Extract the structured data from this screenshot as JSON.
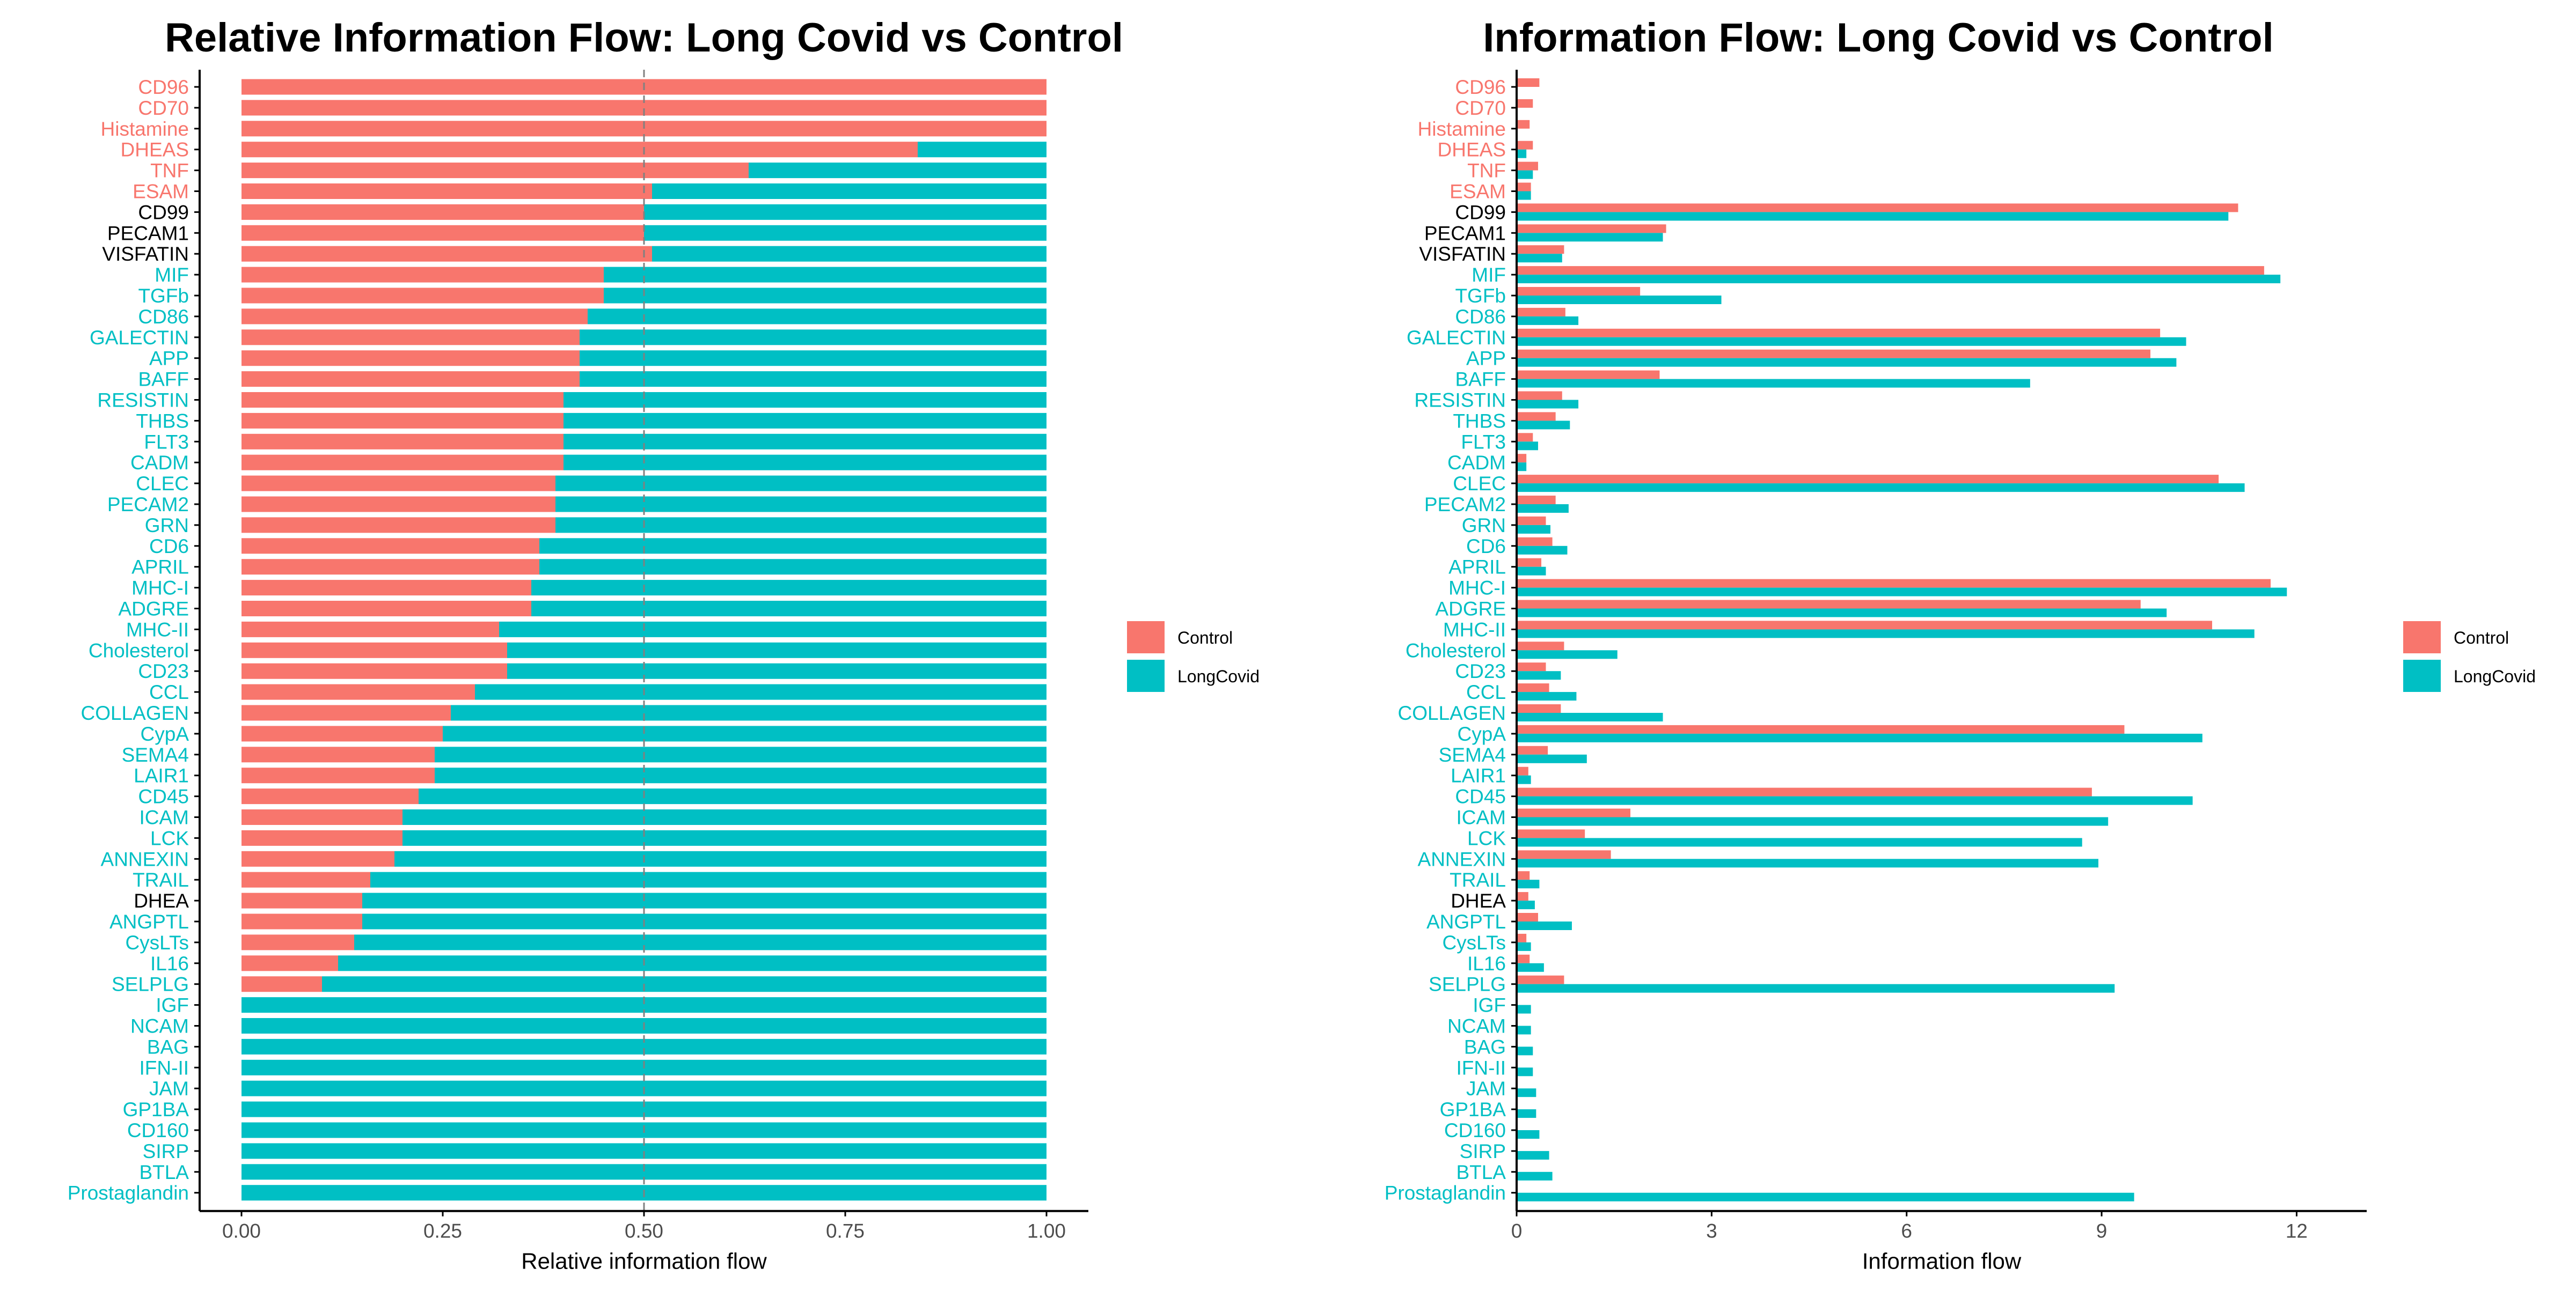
{
  "colors": {
    "Control": "#F8766D",
    "LongCovid": "#00BFC4",
    "neutral_label": "#000000",
    "axis": "#000000",
    "tick_text": "#4D4D4D",
    "reference_line": "#808080"
  },
  "legend": {
    "entries": [
      "Control",
      "LongCovid"
    ]
  },
  "chart_data": [
    {
      "type": "bar",
      "orientation": "horizontal",
      "stacked": true,
      "title": "Relative Information Flow: Long Covid vs Control",
      "xlabel": "Relative information flow",
      "xlim": [
        0,
        1
      ],
      "xticks": [
        0,
        0.25,
        0.5,
        0.75,
        1
      ],
      "xtick_labels": [
        "0.00",
        "0.25",
        "0.50",
        "0.75",
        "1.00"
      ],
      "reference_line_x": 0.5,
      "grid": false,
      "legend_position": "right",
      "categories": [
        "CD96",
        "CD70",
        "Histamine",
        "DHEAS",
        "TNF",
        "ESAM",
        "CD99",
        "PECAM1",
        "VISFATIN",
        "MIF",
        "TGFb",
        "CD86",
        "GALECTIN",
        "APP",
        "BAFF",
        "RESISTIN",
        "THBS",
        "FLT3",
        "CADM",
        "CLEC",
        "PECAM2",
        "GRN",
        "CD6",
        "APRIL",
        "MHC-I",
        "ADGRE",
        "MHC-II",
        "Cholesterol",
        "CD23",
        "CCL",
        "COLLAGEN",
        "CypA",
        "SEMA4",
        "LAIR1",
        "CD45",
        "ICAM",
        "LCK",
        "ANNEXIN",
        "TRAIL",
        "DHEA",
        "ANGPTL",
        "CysLTs",
        "IL16",
        "SELPLG",
        "IGF",
        "NCAM",
        "BAG",
        "IFN-II",
        "JAM",
        "GP1BA",
        "CD160",
        "SIRP",
        "BTLA",
        "Prostaglandin"
      ],
      "label_groups": [
        "Control",
        "Control",
        "Control",
        "Control",
        "Control",
        "Control",
        "neutral",
        "neutral",
        "neutral",
        "LongCovid",
        "LongCovid",
        "LongCovid",
        "LongCovid",
        "LongCovid",
        "LongCovid",
        "LongCovid",
        "LongCovid",
        "LongCovid",
        "LongCovid",
        "LongCovid",
        "LongCovid",
        "LongCovid",
        "LongCovid",
        "LongCovid",
        "LongCovid",
        "LongCovid",
        "LongCovid",
        "LongCovid",
        "LongCovid",
        "LongCovid",
        "LongCovid",
        "LongCovid",
        "LongCovid",
        "LongCovid",
        "LongCovid",
        "LongCovid",
        "LongCovid",
        "LongCovid",
        "LongCovid",
        "neutral",
        "LongCovid",
        "LongCovid",
        "LongCovid",
        "LongCovid",
        "LongCovid",
        "LongCovid",
        "LongCovid",
        "LongCovid",
        "LongCovid",
        "LongCovid",
        "LongCovid",
        "LongCovid",
        "LongCovid",
        "LongCovid"
      ],
      "series": [
        {
          "name": "Control",
          "values": [
            1.0,
            1.0,
            1.0,
            0.84,
            0.63,
            0.51,
            0.5,
            0.5,
            0.51,
            0.45,
            0.45,
            0.43,
            0.42,
            0.42,
            0.42,
            0.4,
            0.4,
            0.4,
            0.4,
            0.39,
            0.39,
            0.39,
            0.37,
            0.37,
            0.36,
            0.36,
            0.32,
            0.33,
            0.33,
            0.29,
            0.26,
            0.25,
            0.24,
            0.24,
            0.22,
            0.2,
            0.2,
            0.19,
            0.16,
            0.15,
            0.15,
            0.14,
            0.12,
            0.1,
            0,
            0,
            0,
            0,
            0,
            0,
            0,
            0,
            0,
            0
          ]
        },
        {
          "name": "LongCovid",
          "values": [
            0,
            0,
            0,
            0.16,
            0.37,
            0.49,
            0.5,
            0.5,
            0.49,
            0.55,
            0.55,
            0.57,
            0.58,
            0.58,
            0.58,
            0.6,
            0.6,
            0.6,
            0.6,
            0.61,
            0.61,
            0.61,
            0.63,
            0.63,
            0.64,
            0.64,
            0.68,
            0.67,
            0.67,
            0.71,
            0.74,
            0.75,
            0.76,
            0.76,
            0.78,
            0.8,
            0.8,
            0.81,
            0.84,
            0.85,
            0.85,
            0.86,
            0.88,
            0.9,
            1.0,
            1.0,
            1.0,
            1.0,
            1.0,
            1.0,
            1.0,
            1.0,
            1.0,
            1.0
          ]
        }
      ]
    },
    {
      "type": "bar",
      "orientation": "horizontal",
      "stacked": false,
      "title": "Information Flow: Long Covid vs Control",
      "xlabel": "Information flow",
      "xlim": [
        0,
        12.5
      ],
      "xticks": [
        0,
        3,
        6,
        9,
        12
      ],
      "xtick_labels": [
        "0",
        "3",
        "6",
        "9",
        "12"
      ],
      "grid": false,
      "legend_position": "right",
      "categories": [
        "CD96",
        "CD70",
        "Histamine",
        "DHEAS",
        "TNF",
        "ESAM",
        "CD99",
        "PECAM1",
        "VISFATIN",
        "MIF",
        "TGFb",
        "CD86",
        "GALECTIN",
        "APP",
        "BAFF",
        "RESISTIN",
        "THBS",
        "FLT3",
        "CADM",
        "CLEC",
        "PECAM2",
        "GRN",
        "CD6",
        "APRIL",
        "MHC-I",
        "ADGRE",
        "MHC-II",
        "Cholesterol",
        "CD23",
        "CCL",
        "COLLAGEN",
        "CypA",
        "SEMA4",
        "LAIR1",
        "CD45",
        "ICAM",
        "LCK",
        "ANNEXIN",
        "TRAIL",
        "DHEA",
        "ANGPTL",
        "CysLTs",
        "IL16",
        "SELPLG",
        "IGF",
        "NCAM",
        "BAG",
        "IFN-II",
        "JAM",
        "GP1BA",
        "CD160",
        "SIRP",
        "BTLA",
        "Prostaglandin"
      ],
      "label_groups": [
        "Control",
        "Control",
        "Control",
        "Control",
        "Control",
        "Control",
        "neutral",
        "neutral",
        "neutral",
        "LongCovid",
        "LongCovid",
        "LongCovid",
        "LongCovid",
        "LongCovid",
        "LongCovid",
        "LongCovid",
        "LongCovid",
        "LongCovid",
        "LongCovid",
        "LongCovid",
        "LongCovid",
        "LongCovid",
        "LongCovid",
        "LongCovid",
        "LongCovid",
        "LongCovid",
        "LongCovid",
        "LongCovid",
        "LongCovid",
        "LongCovid",
        "LongCovid",
        "LongCovid",
        "LongCovid",
        "LongCovid",
        "LongCovid",
        "LongCovid",
        "LongCovid",
        "LongCovid",
        "LongCovid",
        "neutral",
        "LongCovid",
        "LongCovid",
        "LongCovid",
        "LongCovid",
        "LongCovid",
        "LongCovid",
        "LongCovid",
        "LongCovid",
        "LongCovid",
        "LongCovid",
        "LongCovid",
        "LongCovid",
        "LongCovid",
        "LongCovid"
      ],
      "series": [
        {
          "name": "Control",
          "values": [
            0.35,
            0.25,
            0.2,
            0.25,
            0.33,
            0.22,
            11.1,
            2.3,
            0.73,
            11.5,
            1.9,
            0.75,
            9.9,
            9.75,
            2.2,
            0.7,
            0.6,
            0.25,
            0.15,
            10.8,
            0.6,
            0.45,
            0.55,
            0.38,
            11.6,
            9.6,
            10.7,
            0.73,
            0.45,
            0.5,
            0.68,
            9.35,
            0.48,
            0.18,
            8.85,
            1.75,
            1.05,
            1.45,
            0.2,
            0.18,
            0.33,
            0.15,
            0.2,
            0.73,
            0,
            0,
            0,
            0,
            0,
            0,
            0,
            0,
            0,
            0
          ]
        },
        {
          "name": "LongCovid",
          "values": [
            0,
            0,
            0,
            0.15,
            0.25,
            0.22,
            10.95,
            2.25,
            0.7,
            11.75,
            3.15,
            0.95,
            10.3,
            10.15,
            7.9,
            0.95,
            0.82,
            0.33,
            0.15,
            11.2,
            0.8,
            0.52,
            0.78,
            0.45,
            11.85,
            10.0,
            11.35,
            1.55,
            0.68,
            0.92,
            2.25,
            10.55,
            1.08,
            0.22,
            10.4,
            9.1,
            8.7,
            8.95,
            0.35,
            0.28,
            0.85,
            0.22,
            0.42,
            9.2,
            0.22,
            0.22,
            0.25,
            0.25,
            0.3,
            0.3,
            0.35,
            0.5,
            0.55,
            9.5
          ]
        }
      ]
    }
  ]
}
